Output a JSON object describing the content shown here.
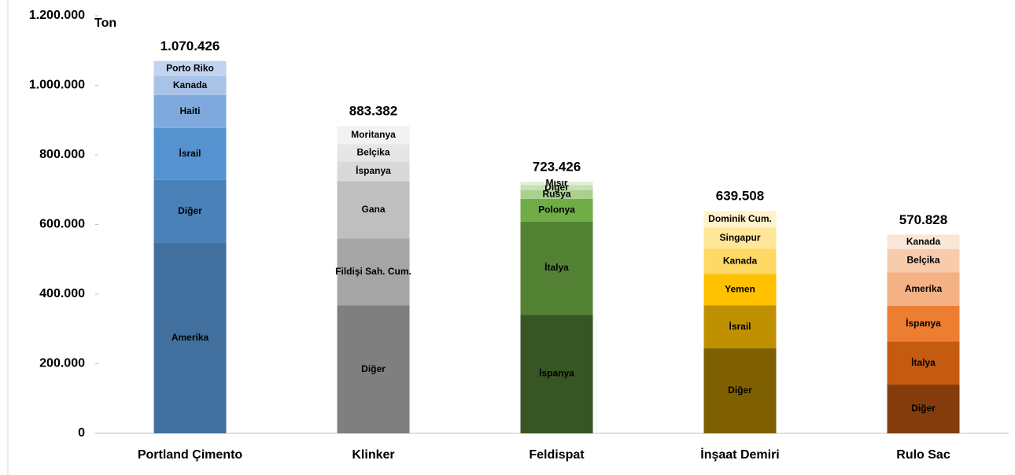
{
  "chart_data": {
    "type": "stacked_bar",
    "y_label": "Ton",
    "ylim": [
      0,
      1200000
    ],
    "yticks": [
      0,
      {
        "value": 200000,
        "label": "200.000"
      },
      {
        "value": 400000,
        "label": "400.000"
      },
      {
        "value": 600000,
        "label": "600.000"
      },
      {
        "value": 800000,
        "label": "800.000"
      },
      {
        "value": 1000000,
        "label": "1.000.000"
      },
      {
        "value": 1200000,
        "label": "1.200.000"
      }
    ],
    "bars": [
      {
        "category": "Portland Çimento",
        "total": 1070426,
        "total_label": "1.070.426",
        "segments": [
          {
            "name": "Amerika",
            "value": 547000,
            "color": "#41709e"
          },
          {
            "name": "Diğer",
            "value": 181000,
            "color": "#4a81b8"
          },
          {
            "name": "İsrail",
            "value": 149000,
            "color": "#5593d0"
          },
          {
            "name": "Haiti",
            "value": 95000,
            "color": "#7fa9dc"
          },
          {
            "name": "Kanada",
            "value": 54000,
            "color": "#a8c3e8"
          },
          {
            "name": "Porto Riko",
            "value": 44000,
            "color": "#c2d3ef"
          }
        ]
      },
      {
        "category": "Klinker",
        "total": 883382,
        "total_label": "883.382",
        "segments": [
          {
            "name": "Diğer",
            "value": 368000,
            "color": "#7f7f7f"
          },
          {
            "name": "Fildişi Sah. Cum.",
            "value": 192000,
            "color": "#a5a5a5"
          },
          {
            "name": "Gana",
            "value": 165000,
            "color": "#bfbfbf"
          },
          {
            "name": "İspanya",
            "value": 56000,
            "color": "#d9d9d9"
          },
          {
            "name": "Belçika",
            "value": 50000,
            "color": "#e6e6e6"
          },
          {
            "name": "Moritanya",
            "value": 52000,
            "color": "#f2f2f2"
          }
        ]
      },
      {
        "category": "Feldispat",
        "total": 723426,
        "total_label": "723.426",
        "segments": [
          {
            "name": "İspanya",
            "value": 341000,
            "color": "#375623"
          },
          {
            "name": "İtalya",
            "value": 267000,
            "color": "#548235"
          },
          {
            "name": "Polonya",
            "value": 66000,
            "color": "#70ad47"
          },
          {
            "name": "Rusya",
            "value": 25000,
            "color": "#a9d18e"
          },
          {
            "name": "Diğer",
            "value": 14000,
            "color": "#c5e0b4"
          },
          {
            "name": "Mısır",
            "value": 10000,
            "color": "#e2efda"
          }
        ]
      },
      {
        "category": "İnşaat Demiri",
        "total": 639508,
        "total_label": "639.508",
        "segments": [
          {
            "name": "Diğer",
            "value": 244000,
            "color": "#7f6000"
          },
          {
            "name": "İsrail",
            "value": 124000,
            "color": "#bf9000"
          },
          {
            "name": "Yemen",
            "value": 90000,
            "color": "#ffc000"
          },
          {
            "name": "Kanada",
            "value": 72000,
            "color": "#ffd966"
          },
          {
            "name": "Singapur",
            "value": 61000,
            "color": "#ffe699"
          },
          {
            "name": "Dominik Cum.",
            "value": 48000,
            "color": "#fff2cc"
          }
        ]
      },
      {
        "category": "Rulo Sac",
        "total": 570828,
        "total_label": "570.828",
        "segments": [
          {
            "name": "Diğer",
            "value": 140000,
            "color": "#843c0c"
          },
          {
            "name": "İtalya",
            "value": 124000,
            "color": "#c55a11"
          },
          {
            "name": "İspanya",
            "value": 102000,
            "color": "#ed7d31"
          },
          {
            "name": "Amerika",
            "value": 97000,
            "color": "#f4b183"
          },
          {
            "name": "Belçika",
            "value": 66000,
            "color": "#f8cbad"
          },
          {
            "name": "Kanada",
            "value": 42000,
            "color": "#fbe5d6"
          }
        ]
      }
    ]
  }
}
